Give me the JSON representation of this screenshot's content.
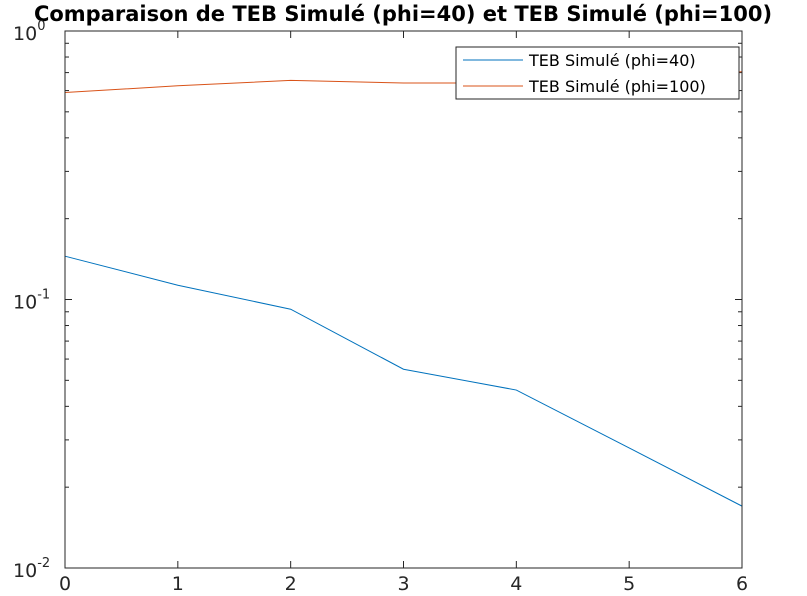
{
  "chart_data": {
    "type": "line",
    "title": "Comparaison de TEB Simulé (phi=40) et TEB Simulé (phi=100)",
    "xlabel": "",
    "ylabel": "",
    "x": [
      0,
      1,
      2,
      3,
      4,
      5,
      6
    ],
    "x_ticks": [
      "0",
      "1",
      "2",
      "3",
      "4",
      "5",
      "6"
    ],
    "xlim": [
      0,
      6
    ],
    "ylim": [
      0.01,
      1
    ],
    "yscale": "log",
    "y_ticks": [
      {
        "base": "10",
        "exp": "-2",
        "value": 0.01
      },
      {
        "base": "10",
        "exp": "-1",
        "value": 0.1
      },
      {
        "base": "10",
        "exp": "0",
        "value": 1
      }
    ],
    "grid": false,
    "legend_position": "top-right",
    "series": [
      {
        "name": "TEB Simulé (phi=40)",
        "color": "#0072BD",
        "values": [
          0.145,
          0.113,
          0.092,
          0.055,
          0.046,
          0.028,
          0.017
        ]
      },
      {
        "name": "TEB Simulé (phi=100)",
        "color": "#D95319",
        "values": [
          0.59,
          0.625,
          0.655,
          0.64,
          0.64,
          0.67,
          0.705
        ]
      }
    ]
  }
}
